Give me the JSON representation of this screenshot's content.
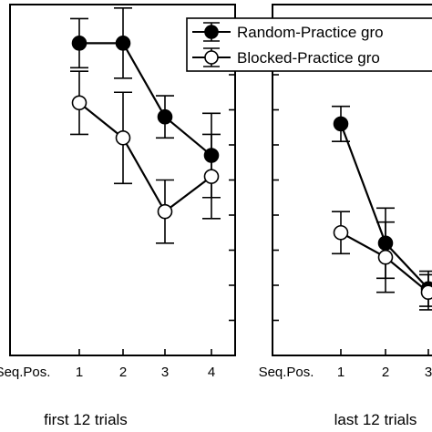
{
  "chart_data": [
    {
      "type": "line",
      "panel_label": "first 12 trials",
      "x_axis_name": "Seq.Pos.",
      "categories": [
        "1",
        "2",
        "3",
        "4"
      ],
      "ylim": [
        0,
        10
      ],
      "grid": false,
      "series": [
        {
          "name": "Random-Practice gro",
          "marker": "filled-circle",
          "values": [
            8.9,
            8.9,
            6.8,
            5.7
          ],
          "error": [
            0.7,
            1.0,
            0.6,
            1.2
          ]
        },
        {
          "name": "Blocked-Practice gro",
          "marker": "open-circle",
          "values": [
            7.2,
            6.2,
            4.1,
            5.1
          ],
          "error": [
            0.9,
            1.3,
            0.9,
            1.2
          ]
        }
      ]
    },
    {
      "type": "line",
      "panel_label": "last 12 trials",
      "x_axis_name": "Seq.Pos.",
      "categories": [
        "1",
        "2",
        "3"
      ],
      "ylim": [
        0,
        10
      ],
      "grid": false,
      "legend": "top-right",
      "series": [
        {
          "name": "Random-Practice gro",
          "marker": "filled-circle",
          "values": [
            6.6,
            3.2,
            1.9
          ],
          "error": [
            0.5,
            1.0,
            0.5
          ]
        },
        {
          "name": "Blocked-Practice gro",
          "marker": "open-circle",
          "values": [
            3.5,
            2.8,
            1.8
          ],
          "error": [
            0.6,
            1.0,
            0.5
          ]
        }
      ]
    }
  ]
}
